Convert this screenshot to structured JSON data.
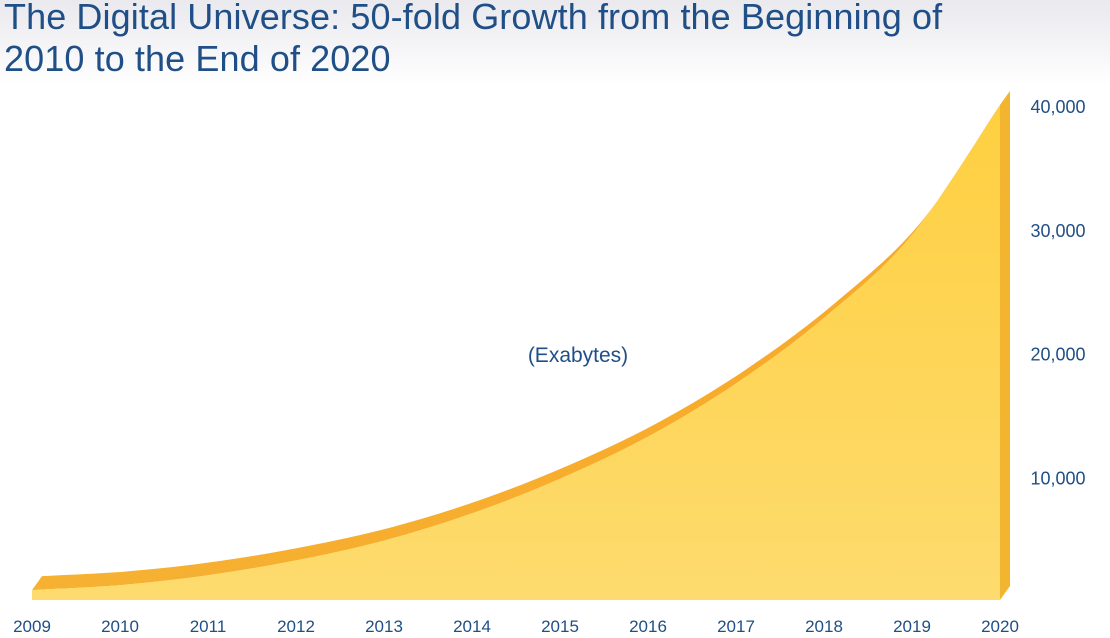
{
  "title": {
    "line1": "The Digital Universe: 50-fold Growth from the Beginning of",
    "line2": "2010 to the End of 2020"
  },
  "chart_data": {
    "type": "area",
    "title": "The Digital Universe: 50-fold Growth from the Beginning of 2010 to the End of 2020",
    "unit_label": "(Exabytes)",
    "x": [
      2009,
      2010,
      2011,
      2012,
      2013,
      2014,
      2015,
      2016,
      2017,
      2018,
      2019,
      2020
    ],
    "x_tick_labels": [
      "2009",
      "2010",
      "2011",
      "2012",
      "2013",
      "2014",
      "2015",
      "2016",
      "2017",
      "2018",
      "2019",
      "2020"
    ],
    "values": [
      800,
      1200,
      2000,
      3200,
      4800,
      7000,
      9800,
      13200,
      17500,
      22800,
      29500,
      40000
    ],
    "y_ticks": [
      10000,
      20000,
      30000,
      40000
    ],
    "y_tick_labels": [
      "10,000",
      "20,000",
      "30,000",
      "40,000"
    ],
    "ylim": [
      0,
      40000
    ],
    "y_axis_side": "right",
    "grid": false,
    "legend": false,
    "colors": {
      "fill_top": "#fecf40",
      "fill_bottom": "#fdd55a",
      "ridge": "#f8b02e",
      "text": "#1f4f86"
    }
  }
}
